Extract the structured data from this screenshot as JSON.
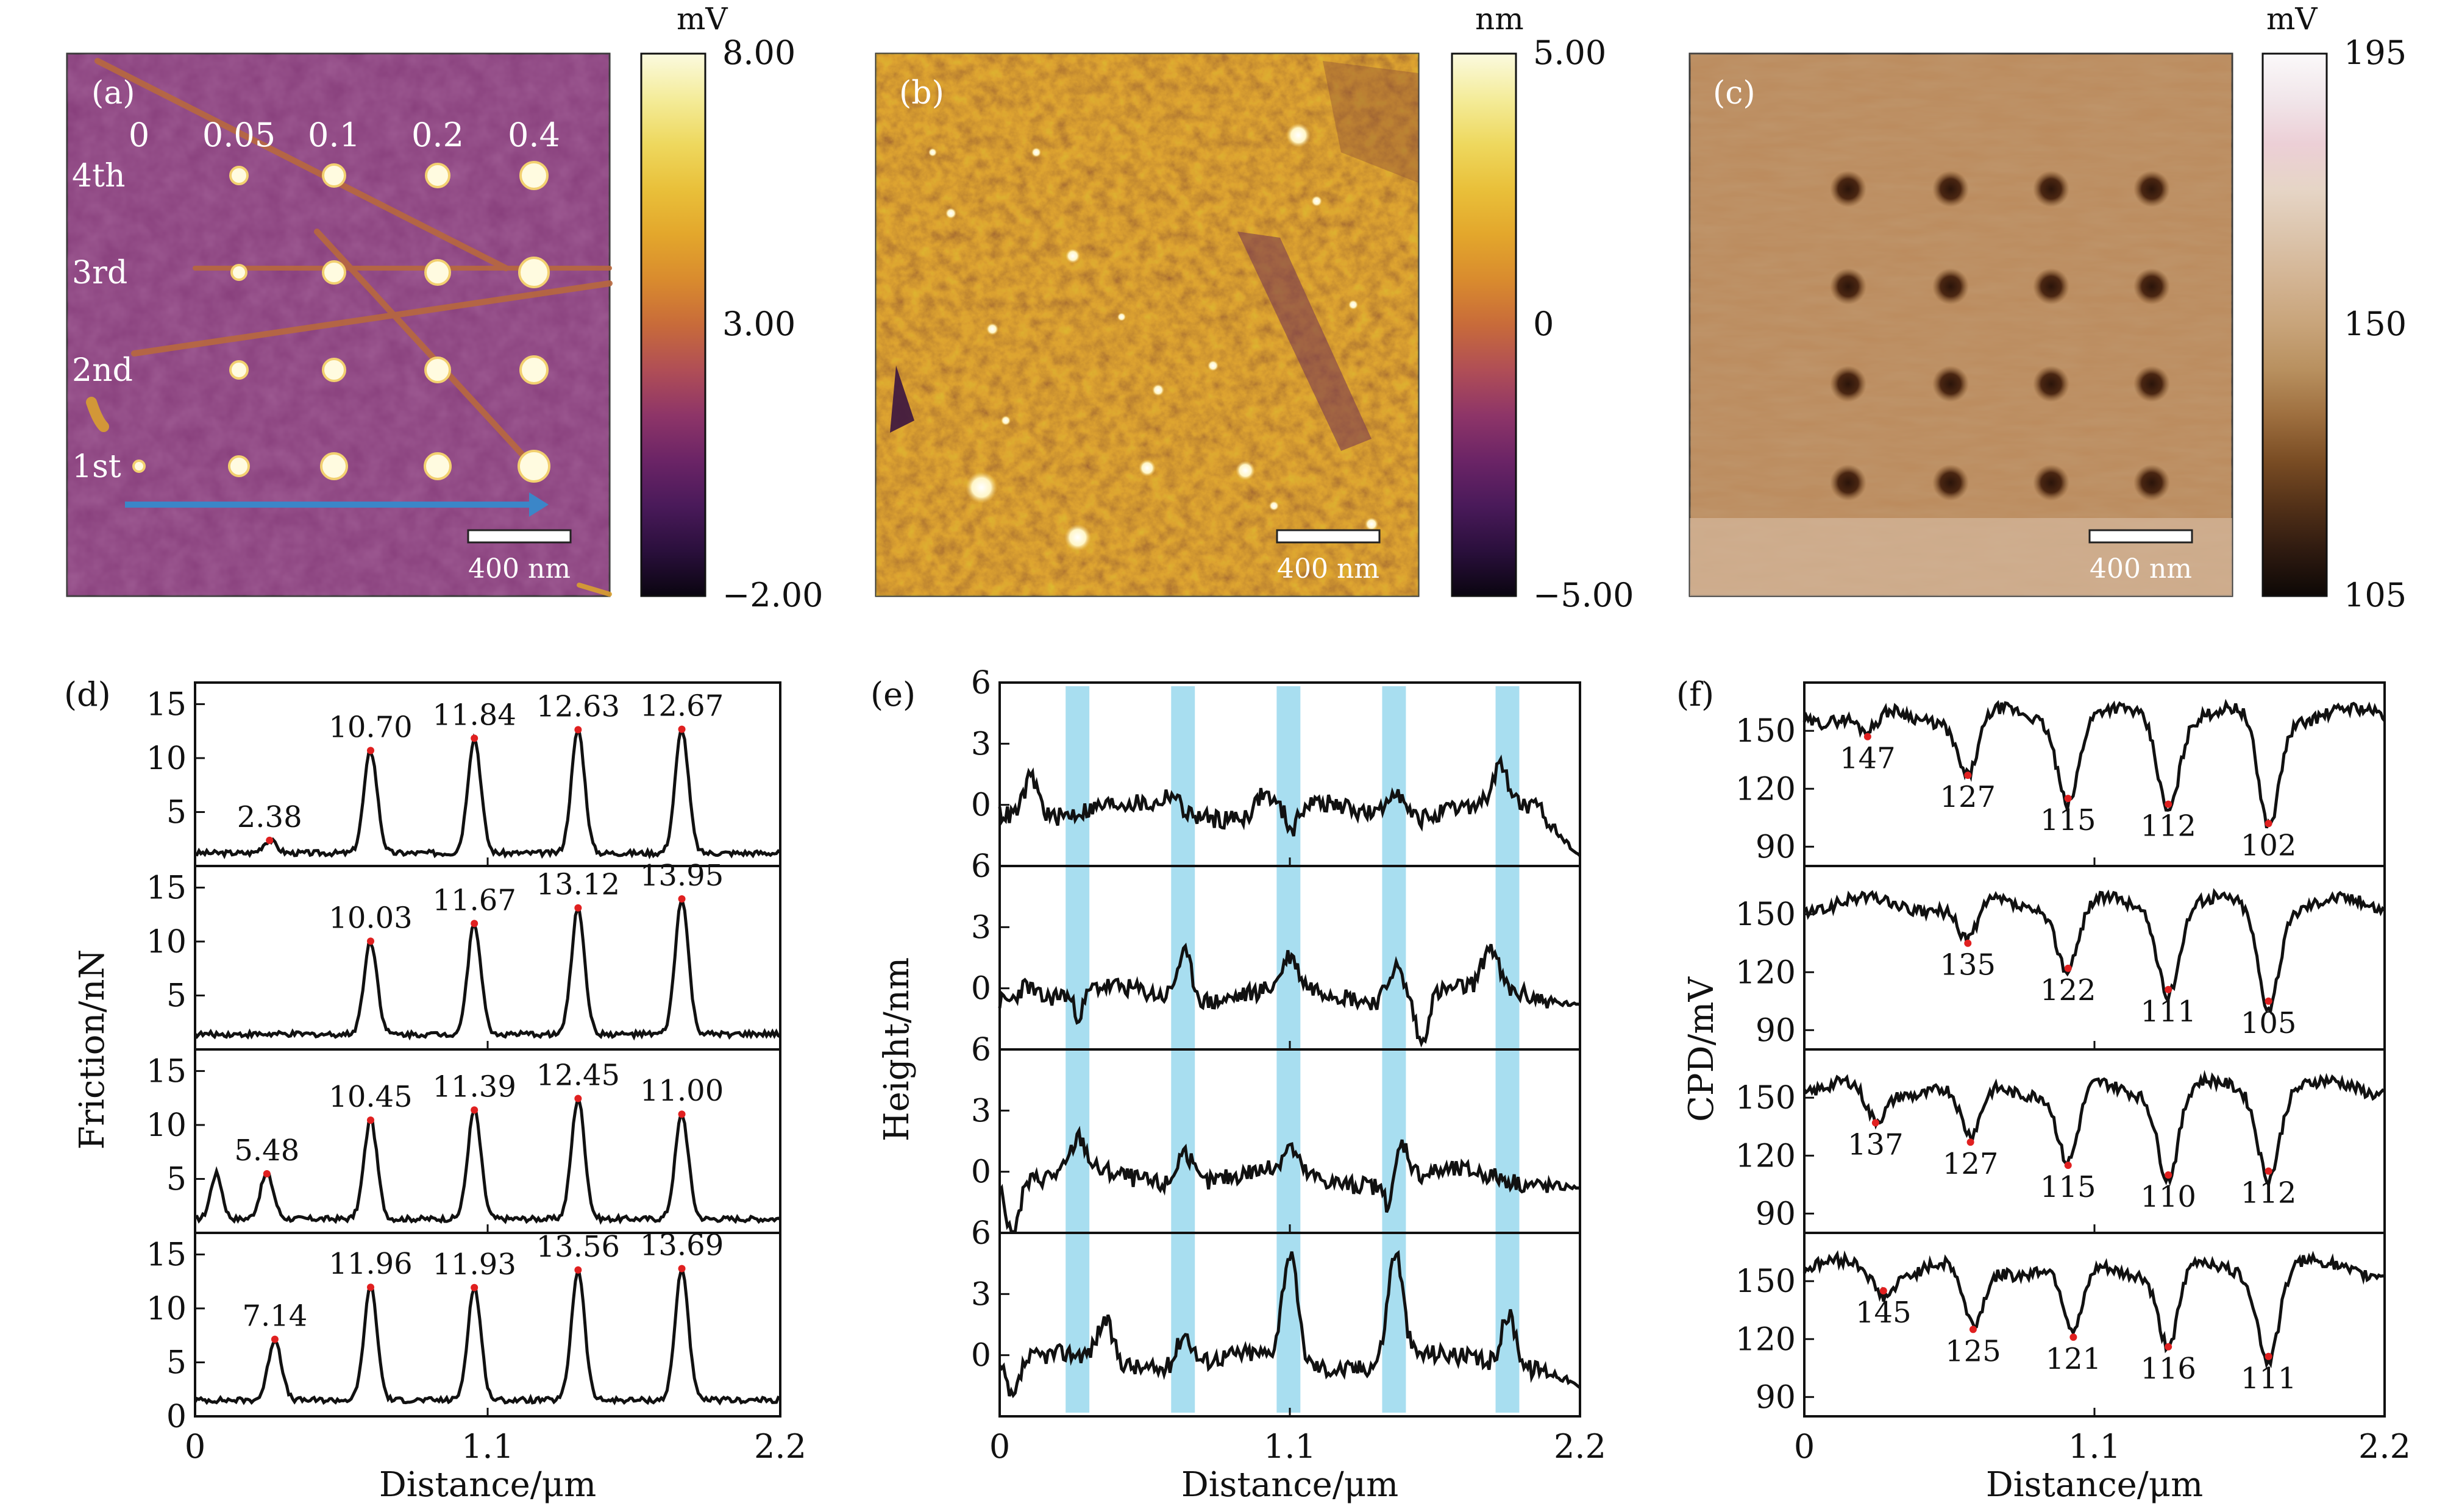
{
  "colors": {
    "hot_colormap": [
      "#0a0510",
      "#2a0f3c",
      "#4a1a5a",
      "#6b2466",
      "#8e3568",
      "#b04e56",
      "#c86b3a",
      "#d98b2e",
      "#e3a72c",
      "#e9c03a",
      "#eed85e",
      "#f4ec9a",
      "#fbfadf"
    ],
    "brown_colormap": [
      "#0d0806",
      "#2e1a10",
      "#533118",
      "#7a4d24",
      "#9e6f3f",
      "#b8905f",
      "#c8a47a",
      "#d3b493",
      "#dcc5ad",
      "#e6d5c6",
      "#eccfd6",
      "#f1e6ea",
      "#fbf9fa"
    ],
    "map_a_bg": "#873e7b",
    "map_b_bg": "#b4661e",
    "map_c_bg": "#bb8a5c",
    "highlight": "#a8def0",
    "arrow": "#3b86c8",
    "peak_marker": "#e02020",
    "line": "#111111"
  },
  "panels_top": [
    {
      "id": "a",
      "label": "(a)",
      "colorbar": {
        "unit": "mV",
        "ticks": [
          "8.00",
          "3.00",
          "−2.00"
        ]
      },
      "scale_bar": "400 nm",
      "col_labels": [
        "0",
        "0.05",
        "0.1",
        "0.2",
        "0.4"
      ],
      "row_labels": [
        "4th",
        "3rd",
        "2nd",
        "1st"
      ]
    },
    {
      "id": "b",
      "label": "(b)",
      "colorbar": {
        "unit": "nm",
        "ticks": [
          "5.00",
          "0",
          "−5.00"
        ]
      },
      "scale_bar": "400 nm"
    },
    {
      "id": "c",
      "label": "(c)",
      "colorbar": {
        "unit": "mV",
        "ticks": [
          "195",
          "150",
          "105"
        ]
      },
      "scale_bar": "400 nm"
    }
  ],
  "chart_data": [
    {
      "type": "line",
      "panel": "(d)",
      "ylabel": "Friction/nN",
      "xlabel": "Distance/μm",
      "xlim": [
        0,
        2.2
      ],
      "xticks": [
        "0",
        "1.1",
        "2.2"
      ],
      "ylim": [
        0,
        17
      ],
      "yticks": [
        5,
        10,
        15
      ],
      "bottom_ytick": "0",
      "subplots": [
        {
          "peaks": [
            {
              "x": 0.28,
              "y": 2.38,
              "label": "2.38"
            },
            {
              "x": 0.66,
              "y": 10.7,
              "label": "10.70"
            },
            {
              "x": 1.05,
              "y": 11.84,
              "label": "11.84"
            },
            {
              "x": 1.44,
              "y": 12.63,
              "label": "12.63"
            },
            {
              "x": 1.83,
              "y": 12.67,
              "label": "12.67"
            }
          ],
          "baseline": 1.2,
          "extra_peaks": []
        },
        {
          "peaks": [
            {
              "x": 0.66,
              "y": 10.03,
              "label": "10.03"
            },
            {
              "x": 1.05,
              "y": 11.67,
              "label": "11.67"
            },
            {
              "x": 1.44,
              "y": 13.12,
              "label": "13.12"
            },
            {
              "x": 1.83,
              "y": 13.95,
              "label": "13.95"
            }
          ],
          "baseline": 1.4,
          "extra_peaks": []
        },
        {
          "peaks": [
            {
              "x": 0.27,
              "y": 5.48,
              "label": "5.48"
            },
            {
              "x": 0.66,
              "y": 10.45,
              "label": "10.45"
            },
            {
              "x": 1.05,
              "y": 11.39,
              "label": "11.39"
            },
            {
              "x": 1.44,
              "y": 12.45,
              "label": "12.45"
            },
            {
              "x": 1.83,
              "y": 11.0,
              "label": "11.00"
            }
          ],
          "baseline": 1.3,
          "extra_peaks": [
            {
              "x": 0.08,
              "y": 5.5
            }
          ]
        },
        {
          "peaks": [
            {
              "x": 0.3,
              "y": 7.14,
              "label": "7.14"
            },
            {
              "x": 0.66,
              "y": 11.96,
              "label": "11.96"
            },
            {
              "x": 1.05,
              "y": 11.93,
              "label": "11.93"
            },
            {
              "x": 1.44,
              "y": 13.56,
              "label": "13.56"
            },
            {
              "x": 1.83,
              "y": 13.69,
              "label": "13.69"
            }
          ],
          "baseline": 1.5,
          "extra_peaks": []
        }
      ]
    },
    {
      "type": "line",
      "panel": "(e)",
      "ylabel": "Height/nm",
      "xlabel": "Distance/μm",
      "xlim": [
        0,
        2.2
      ],
      "xticks": [
        "0",
        "1.1",
        "2.2"
      ],
      "ylim": [
        -3,
        6
      ],
      "yticks": [
        0,
        3,
        6
      ],
      "highlight_bands": [
        [
          0.25,
          0.34
        ],
        [
          0.65,
          0.74
        ],
        [
          1.05,
          1.14
        ],
        [
          1.45,
          1.54
        ],
        [
          1.88,
          1.97
        ]
      ],
      "subplots": [
        {
          "peaks": [
            {
              "x": 0.12,
              "y": 2.0
            },
            {
              "x": 0.65,
              "y": 0.8
            },
            {
              "x": 1.0,
              "y": 0.9
            },
            {
              "x": 1.5,
              "y": 1.5
            },
            {
              "x": 1.9,
              "y": 1.8
            }
          ],
          "dips": [
            {
              "x": 1.11,
              "y": -1.2
            }
          ],
          "end": -2.5
        },
        {
          "peaks": [
            {
              "x": 0.1,
              "y": 0.8
            },
            {
              "x": 0.7,
              "y": 2.3
            },
            {
              "x": 1.1,
              "y": 1.5
            },
            {
              "x": 1.5,
              "y": 1.7
            },
            {
              "x": 1.86,
              "y": 2.0
            }
          ],
          "dips": [
            {
              "x": 0.3,
              "y": -1.2
            },
            {
              "x": 1.6,
              "y": -2.3
            }
          ],
          "end": -0.8
        },
        {
          "peaks": [
            {
              "x": 0.3,
              "y": 1.6
            },
            {
              "x": 0.7,
              "y": 1.7
            },
            {
              "x": 1.1,
              "y": 1.2
            },
            {
              "x": 1.52,
              "y": 2.0
            }
          ],
          "dips": [
            {
              "x": 0.05,
              "y": -2.8
            },
            {
              "x": 1.48,
              "y": -1.6
            }
          ],
          "end": -0.8
        },
        {
          "peaks": [
            {
              "x": 0.4,
              "y": 1.9
            },
            {
              "x": 0.7,
              "y": 1.6
            },
            {
              "x": 1.1,
              "y": 5.2
            },
            {
              "x": 1.5,
              "y": 5.3
            },
            {
              "x": 1.93,
              "y": 2.6
            }
          ],
          "dips": [
            {
              "x": 0.05,
              "y": -1.8
            }
          ],
          "end": -1.6
        }
      ]
    },
    {
      "type": "line",
      "panel": "(f)",
      "ylabel": "CPD/mV",
      "xlabel": "Distance/μm",
      "xlim": [
        0,
        2.2
      ],
      "xticks": [
        "0",
        "1.1",
        "2.2"
      ],
      "ylim": [
        80,
        175
      ],
      "yticks": [
        90,
        120,
        150
      ],
      "subplots": [
        {
          "baseline": 158,
          "dips": [
            {
              "x": 0.24,
              "y": 147,
              "label": "147"
            },
            {
              "x": 0.62,
              "y": 127,
              "label": "127"
            },
            {
              "x": 1.0,
              "y": 115,
              "label": "115"
            },
            {
              "x": 1.38,
              "y": 112,
              "label": "112"
            },
            {
              "x": 1.76,
              "y": 102,
              "label": "102"
            }
          ]
        },
        {
          "baseline": 155,
          "dips": [
            {
              "x": 0.62,
              "y": 135,
              "label": "135"
            },
            {
              "x": 1.0,
              "y": 122,
              "label": "122"
            },
            {
              "x": 1.38,
              "y": 111,
              "label": "111"
            },
            {
              "x": 1.76,
              "y": 105,
              "label": "105"
            }
          ]
        },
        {
          "baseline": 155,
          "dips": [
            {
              "x": 0.27,
              "y": 137,
              "label": "137"
            },
            {
              "x": 0.63,
              "y": 127,
              "label": "127"
            },
            {
              "x": 1.0,
              "y": 115,
              "label": "115"
            },
            {
              "x": 1.38,
              "y": 110,
              "label": "110"
            },
            {
              "x": 1.76,
              "y": 112,
              "label": "112"
            }
          ]
        },
        {
          "baseline": 157,
          "dips": [
            {
              "x": 0.3,
              "y": 145,
              "label": "145"
            },
            {
              "x": 0.64,
              "y": 125,
              "label": "125"
            },
            {
              "x": 1.02,
              "y": 121,
              "label": "121"
            },
            {
              "x": 1.38,
              "y": 116,
              "label": "116"
            },
            {
              "x": 1.76,
              "y": 111,
              "label": "111"
            }
          ]
        }
      ]
    }
  ]
}
